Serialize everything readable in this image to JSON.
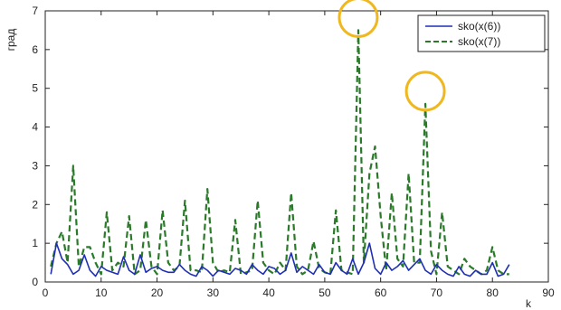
{
  "chart_data": {
    "type": "line",
    "xlabel": "k",
    "ylabel": "град",
    "xlim": [
      0,
      90
    ],
    "ylim": [
      0,
      7
    ],
    "xticks": [
      0,
      10,
      20,
      30,
      40,
      50,
      60,
      70,
      80,
      90
    ],
    "yticks": [
      0,
      1,
      2,
      3,
      4,
      5,
      6,
      7
    ],
    "grid": false,
    "legend_position": "top-right",
    "colors": {
      "series1": "#1f2fb4",
      "series2": "#2a7a2a",
      "highlight": "#f0b820"
    },
    "highlights": [
      {
        "x": 56,
        "y": 6.5
      },
      {
        "x": 68,
        "y": 4.6
      }
    ],
    "series": [
      {
        "name": "sko(x(6))",
        "style": "solid",
        "x": [
          1,
          2,
          3,
          4,
          5,
          6,
          7,
          8,
          9,
          10,
          11,
          12,
          13,
          14,
          15,
          16,
          17,
          18,
          19,
          20,
          21,
          22,
          23,
          24,
          25,
          26,
          27,
          28,
          29,
          30,
          31,
          32,
          33,
          34,
          35,
          36,
          37,
          38,
          39,
          40,
          41,
          42,
          43,
          44,
          45,
          46,
          47,
          48,
          49,
          50,
          51,
          52,
          53,
          54,
          55,
          56,
          57,
          58,
          59,
          60,
          61,
          62,
          63,
          64,
          65,
          66,
          67,
          68,
          69,
          70,
          71,
          72,
          73,
          74,
          75,
          76,
          77,
          78,
          79,
          80,
          81,
          82,
          83
        ],
        "values": [
          0.2,
          1.0,
          0.6,
          0.45,
          0.2,
          0.3,
          0.7,
          0.3,
          0.15,
          0.4,
          0.3,
          0.25,
          0.2,
          0.65,
          0.3,
          0.2,
          0.7,
          0.25,
          0.35,
          0.4,
          0.3,
          0.25,
          0.25,
          0.45,
          0.3,
          0.2,
          0.15,
          0.4,
          0.3,
          0.15,
          0.3,
          0.25,
          0.2,
          0.35,
          0.3,
          0.2,
          0.45,
          0.3,
          0.2,
          0.4,
          0.35,
          0.2,
          0.3,
          0.75,
          0.25,
          0.4,
          0.3,
          0.2,
          0.45,
          0.25,
          0.2,
          0.5,
          0.3,
          0.2,
          0.6,
          0.2,
          0.5,
          1.0,
          0.35,
          0.2,
          0.5,
          0.3,
          0.4,
          0.55,
          0.3,
          0.45,
          0.6,
          0.3,
          0.2,
          0.45,
          0.3,
          0.2,
          0.15,
          0.4,
          0.2,
          0.15,
          0.3,
          0.2,
          0.2,
          0.5,
          0.15,
          0.2,
          0.45
        ]
      },
      {
        "name": "sko(x(7))",
        "style": "dashed",
        "x": [
          1,
          2,
          3,
          4,
          5,
          6,
          7,
          8,
          9,
          10,
          11,
          12,
          13,
          14,
          15,
          16,
          17,
          18,
          19,
          20,
          21,
          22,
          23,
          24,
          25,
          26,
          27,
          28,
          29,
          30,
          31,
          32,
          33,
          34,
          35,
          36,
          37,
          38,
          39,
          40,
          41,
          42,
          43,
          44,
          45,
          46,
          47,
          48,
          49,
          50,
          51,
          52,
          53,
          54,
          55,
          56,
          57,
          58,
          59,
          60,
          61,
          62,
          63,
          64,
          65,
          66,
          67,
          68,
          69,
          70,
          71,
          72,
          73,
          74,
          75,
          76,
          77,
          78,
          79,
          80,
          81,
          82,
          83
        ],
        "values": [
          0.4,
          1.0,
          1.3,
          0.5,
          3.0,
          0.4,
          0.9,
          0.9,
          0.5,
          0.2,
          1.8,
          0.3,
          0.5,
          0.4,
          1.7,
          0.2,
          0.3,
          1.6,
          0.4,
          0.2,
          1.85,
          0.5,
          0.3,
          0.4,
          2.1,
          0.3,
          0.3,
          0.25,
          2.4,
          0.5,
          0.25,
          0.3,
          0.25,
          1.6,
          0.2,
          0.25,
          0.3,
          2.1,
          0.5,
          0.3,
          0.2,
          0.5,
          0.3,
          2.3,
          0.4,
          0.2,
          0.3,
          1.05,
          0.35,
          0.25,
          0.2,
          1.85,
          0.3,
          0.25,
          0.2,
          6.5,
          0.5,
          2.8,
          3.5,
          1.7,
          0.3,
          2.3,
          0.6,
          0.4,
          2.8,
          0.5,
          0.5,
          4.6,
          0.8,
          0.2,
          1.8,
          0.4,
          0.3,
          0.2,
          0.6,
          0.4,
          0.3,
          0.2,
          0.3,
          0.9,
          0.3,
          0.2,
          0.2
        ]
      }
    ]
  }
}
